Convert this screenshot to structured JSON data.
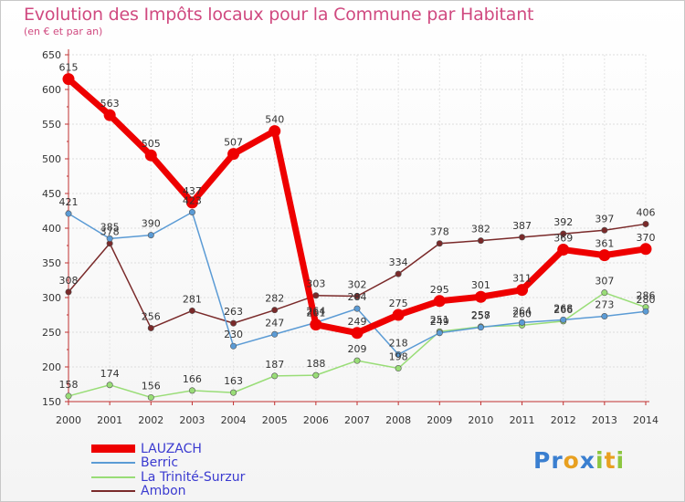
{
  "title": "Evolution des Impôts locaux pour la Commune par Habitant",
  "subtitle": "(en € et par an)",
  "logo": {
    "letters": [
      "P",
      "r",
      "o",
      "x",
      "i",
      "t",
      "i"
    ],
    "colors": [
      "#3a7fd0",
      "#3a7fd0",
      "#e8a020",
      "#3a7fd0",
      "#8cc63f",
      "#e8a020",
      "#8cc63f"
    ]
  },
  "chart_data": {
    "type": "line",
    "x": [
      "2000",
      "2001",
      "2002",
      "2003",
      "2004",
      "2005",
      "2006",
      "2007",
      "2008",
      "2009",
      "2010",
      "2011",
      "2012",
      "2013",
      "2014"
    ],
    "yticks": [
      150,
      200,
      250,
      300,
      350,
      400,
      450,
      500,
      550,
      600,
      650
    ],
    "ylim": [
      150,
      650
    ],
    "grid": true,
    "legend_position": "bottom-left",
    "series": [
      {
        "name": "LAUZACH",
        "color": "#ee0000",
        "values": [
          615,
          563,
          505,
          437,
          507,
          540,
          261,
          249,
          275,
          295,
          301,
          311,
          369,
          361,
          370
        ]
      },
      {
        "name": "Berric",
        "color": "#5b9bd5",
        "values": [
          421,
          385,
          390,
          423,
          230,
          247,
          264,
          284,
          218,
          249,
          257,
          264,
          268,
          273,
          280
        ]
      },
      {
        "name": "La Trinité-Surzur",
        "color": "#99dd77",
        "values": [
          158,
          174,
          156,
          166,
          163,
          187,
          188,
          209,
          198,
          251,
          258,
          260,
          266,
          307,
          286
        ]
      },
      {
        "name": "Ambon",
        "color": "#7a2a2a",
        "values": [
          308,
          378,
          256,
          281,
          263,
          282,
          303,
          302,
          334,
          378,
          382,
          387,
          392,
          397,
          406
        ]
      }
    ],
    "data_labels": {
      "LAUZACH": [
        "615",
        "563",
        "505",
        "437",
        "507",
        "540",
        "261",
        "249",
        "275",
        "295",
        "301",
        "311",
        "369",
        "361",
        "370"
      ],
      "Berric": [
        "421",
        "385",
        "390",
        "423",
        "230",
        "247",
        "264",
        "284",
        "218",
        "249",
        "257",
        "264",
        "268",
        "273",
        "280"
      ],
      "La Trinité-Surzur": [
        "158",
        "174",
        "156",
        "166",
        "163",
        "187",
        "188",
        "209",
        "198",
        "251",
        "258",
        "260",
        "266",
        "307",
        "286"
      ],
      "Ambon": [
        "308",
        "378",
        "256",
        "281",
        "263",
        "282",
        "303",
        "302",
        "334",
        "378",
        "382",
        "387",
        "392",
        "397",
        "406"
      ]
    }
  }
}
